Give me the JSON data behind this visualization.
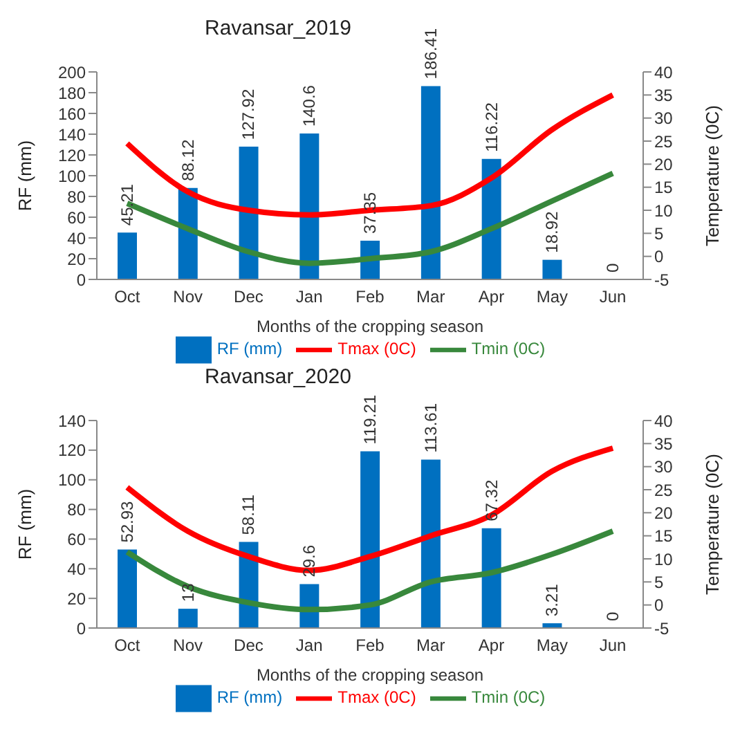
{
  "chart_data": [
    {
      "type": "bar",
      "title": "Ravansar_2019",
      "xlabel": "Months of the cropping season",
      "ylabel": "RF (mm)",
      "y2label": "Temperature (0C)",
      "categories": [
        "Oct",
        "Nov",
        "Dec",
        "Jan",
        "Feb",
        "Mar",
        "Apr",
        "May",
        "Jun"
      ],
      "series": [
        {
          "name": "RF (mm)",
          "type": "bar",
          "color": "#0070c0",
          "values": [
            45.21,
            88.12,
            127.92,
            140.6,
            37.35,
            186.41,
            116.22,
            18.92,
            0
          ],
          "value_labels": [
            "45.21",
            "88.12",
            "127.92",
            "140.6",
            "37.35",
            "186.41",
            "116.22",
            "18.92",
            "0"
          ]
        },
        {
          "name": "Tmax (0C)",
          "type": "line",
          "axis": "y2",
          "color": "#ff0000",
          "values": [
            24.5,
            14,
            10,
            9,
            10,
            11,
            17,
            27.5,
            35
          ]
        },
        {
          "name": "Tmin (0C)",
          "type": "line",
          "axis": "y2",
          "color": "#38883c",
          "values": [
            11.5,
            6,
            1,
            -1.5,
            -0.5,
            1,
            6,
            12,
            18
          ]
        }
      ],
      "ylim": [
        0,
        200
      ],
      "yticks": [
        0,
        20,
        40,
        60,
        80,
        100,
        120,
        140,
        160,
        180,
        200
      ],
      "y2lim": [
        -5,
        40
      ],
      "y2ticks": [
        -5,
        0,
        5,
        10,
        15,
        20,
        25,
        30,
        35,
        40
      ],
      "legend": "bottom",
      "grid": false,
      "marker": "none",
      "line_style": "solid"
    },
    {
      "type": "bar",
      "title": "Ravansar_2020",
      "xlabel": "Months of the cropping season",
      "ylabel": "RF (mm)",
      "y2label": "Temperature (0C)",
      "categories": [
        "Oct",
        "Nov",
        "Dec",
        "Jan",
        "Feb",
        "Mar",
        "Apr",
        "May",
        "Jun"
      ],
      "series": [
        {
          "name": "RF (mm)",
          "type": "bar",
          "color": "#0070c0",
          "values": [
            52.93,
            13,
            58.11,
            29.6,
            119.21,
            113.61,
            67.32,
            3.21,
            0
          ],
          "value_labels": [
            "52.93",
            "13",
            "58.11",
            "29.6",
            "119.21",
            "113.61",
            "67.32",
            "3.21",
            "0"
          ]
        },
        {
          "name": "Tmax (0C)",
          "type": "line",
          "axis": "y2",
          "color": "#ff0000",
          "values": [
            25.5,
            16,
            10.5,
            7.5,
            10.5,
            15,
            19.5,
            29,
            34
          ]
        },
        {
          "name": "Tmin (0C)",
          "type": "line",
          "axis": "y2",
          "color": "#38883c",
          "values": [
            11.5,
            4,
            0.5,
            -1,
            0,
            5,
            7,
            11,
            16
          ]
        }
      ],
      "ylim": [
        0,
        140
      ],
      "yticks": [
        0,
        20,
        40,
        60,
        80,
        100,
        120,
        140
      ],
      "y2lim": [
        -5,
        40
      ],
      "y2ticks": [
        -5,
        0,
        5,
        10,
        15,
        20,
        25,
        30,
        35,
        40
      ],
      "legend": "bottom",
      "grid": false,
      "marker": "none",
      "line_style": "solid"
    }
  ]
}
